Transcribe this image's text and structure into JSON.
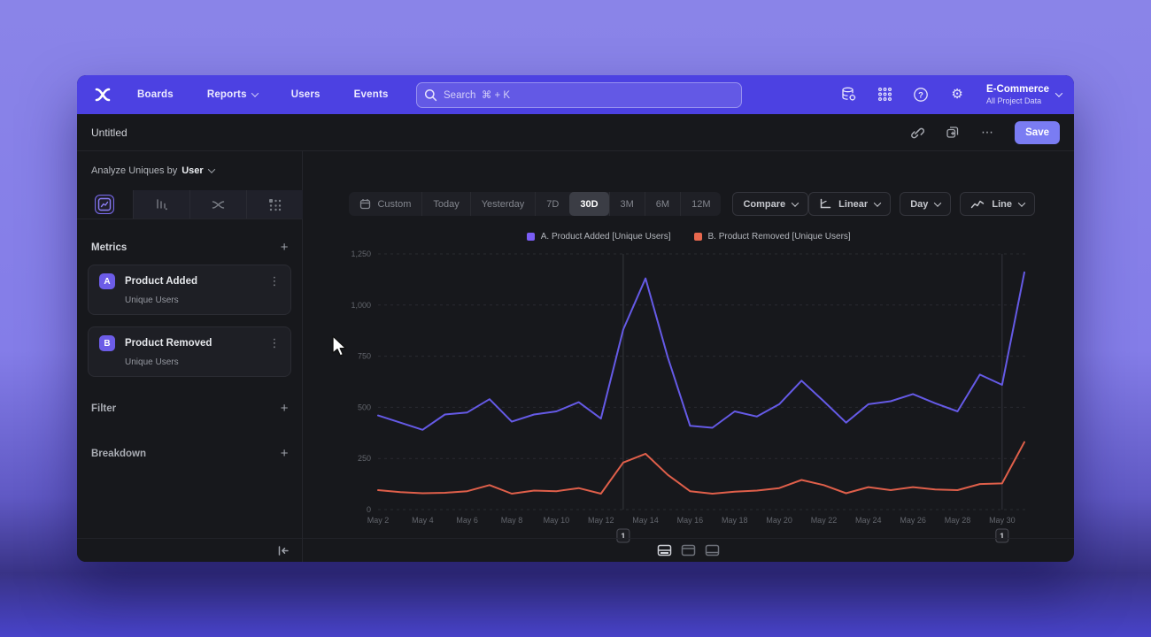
{
  "navbar": {
    "brand_icon": "mixpanel-logo",
    "items": [
      {
        "label": "Boards",
        "has_chevron": false
      },
      {
        "label": "Reports",
        "has_chevron": true
      },
      {
        "label": "Users",
        "has_chevron": false
      },
      {
        "label": "Events",
        "has_chevron": false
      }
    ],
    "search": {
      "icon": "search-icon",
      "placeholder": "Search  ⌘ + K"
    },
    "right_icons": [
      "data-management-icon",
      "apps-grid-icon",
      "help-icon",
      "gear-icon"
    ],
    "project": {
      "name": "E-Commerce",
      "subtitle": "All Project Data"
    }
  },
  "header": {
    "title": "Untitled",
    "icons": [
      "link-icon",
      "duplicate-icon",
      "more-icon"
    ],
    "more_glyph": "⋯",
    "save_label": "Save"
  },
  "sidebar": {
    "analyze_label": "Analyze Uniques by",
    "analyze_value": "User",
    "tabs": [
      "insights-tab",
      "bar-chart-tab",
      "flows-tab",
      "retention-tab"
    ],
    "metrics_label": "Metrics",
    "filter_label": "Filter",
    "breakdown_label": "Breakdown",
    "add_glyph": "+",
    "kebab_glyph": "⋮",
    "collapse_icon": "collapse-sidebar-icon",
    "metrics": [
      {
        "badge": "A",
        "name": "Product Added",
        "subtitle": "Unique Users"
      },
      {
        "badge": "B",
        "name": "Product Removed",
        "subtitle": "Unique Users"
      }
    ]
  },
  "toolbar": {
    "ranges": [
      "Custom",
      "Today",
      "Yesterday",
      "7D",
      "30D",
      "3M",
      "6M",
      "12M"
    ],
    "active_range": "30D",
    "compare_label": "Compare",
    "scale_label": "Linear",
    "interval_label": "Day",
    "chart_type_label": "Line"
  },
  "colors": {
    "accent": "#4c41e2",
    "save_button": "#7a7cf3",
    "badge": "#6c5ce7",
    "series_a": "#655ae6",
    "series_b": "#df5f4a",
    "legend_a": "#7a5df5",
    "legend_b": "#e8684e"
  },
  "chart_data": {
    "type": "line",
    "x": [
      "May 2",
      "May 3",
      "May 4",
      "May 5",
      "May 6",
      "May 7",
      "May 8",
      "May 9",
      "May 10",
      "May 11",
      "May 12",
      "May 13",
      "May 14",
      "May 15",
      "May 16",
      "May 17",
      "May 18",
      "May 19",
      "May 20",
      "May 21",
      "May 22",
      "May 23",
      "May 24",
      "May 25",
      "May 26",
      "May 27",
      "May 28",
      "May 29",
      "May 30",
      "May 31"
    ],
    "x_tick_step": 2,
    "series": [
      {
        "name": "A. Product Added [Unique Users]",
        "color": "#655ae6",
        "values": [
          460,
          425,
          390,
          465,
          475,
          540,
          430,
          465,
          480,
          525,
          445,
          880,
          1130,
          745,
          410,
          400,
          480,
          455,
          515,
          630,
          530,
          425,
          515,
          530,
          565,
          520,
          480,
          660,
          610,
          1160
        ]
      },
      {
        "name": "B. Product Removed [Unique Users]",
        "color": "#df5f4a",
        "values": [
          95,
          85,
          80,
          82,
          90,
          120,
          78,
          93,
          90,
          105,
          78,
          230,
          273,
          170,
          90,
          78,
          88,
          93,
          105,
          145,
          120,
          80,
          110,
          95,
          110,
          98,
          95,
          125,
          128,
          330
        ]
      }
    ],
    "ylim": [
      0,
      1250
    ],
    "yticks": [
      0,
      250,
      500,
      750,
      1000,
      1250
    ],
    "ytick_labels": [
      "0",
      "250",
      "500",
      "750",
      "1,000",
      "1,250"
    ],
    "grid": "dashed-horizontal",
    "legend_position": "top-center",
    "annotations": [
      {
        "date": "May 13",
        "index": 11,
        "label": "1"
      },
      {
        "date": "May 30",
        "index": 28,
        "label": "1"
      }
    ]
  },
  "footer": {
    "view_icons": [
      "split-view-icon",
      "top-panel-view-icon",
      "bottom-panel-view-icon"
    ],
    "active_view": "split-view-icon"
  }
}
